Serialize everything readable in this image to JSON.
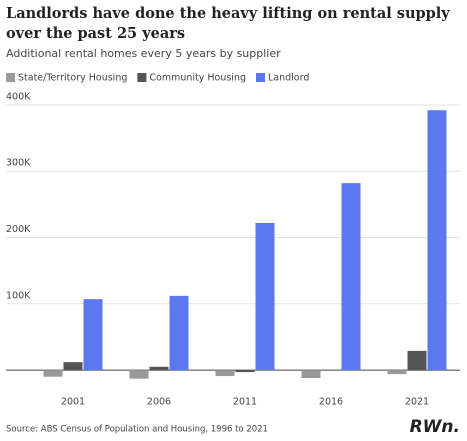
{
  "chart_data": {
    "type": "bar",
    "title": "Landlords have done the heavy lifting on rental supply over the past 25 years",
    "subtitle": "Additional rental homes every 5 years by supplier",
    "source": "Source: ABS Census of Population and Housing, 1996 to 2021",
    "logo": "RWn.",
    "categories": [
      "2001",
      "2006",
      "2011",
      "2016",
      "2021"
    ],
    "series": [
      {
        "name": "State/Territory Housing",
        "color": "#9a9a9a",
        "values": [
          -10000,
          -13000,
          -9000,
          -12000,
          -6000
        ]
      },
      {
        "name": "Community Housing",
        "color": "#555555",
        "values": [
          12000,
          5000,
          -3000,
          0,
          29000
        ]
      },
      {
        "name": "Landlord",
        "color": "#5b78ee",
        "values": [
          107000,
          112000,
          222000,
          282000,
          392000
        ]
      }
    ],
    "ylim": [
      -27000,
      415000
    ],
    "yticks": [
      {
        "value": 100000,
        "label": "100K"
      },
      {
        "value": 200000,
        "label": "200K"
      },
      {
        "value": 300000,
        "label": "300K"
      },
      {
        "value": 400000,
        "label": "400K"
      }
    ],
    "grid": true
  }
}
